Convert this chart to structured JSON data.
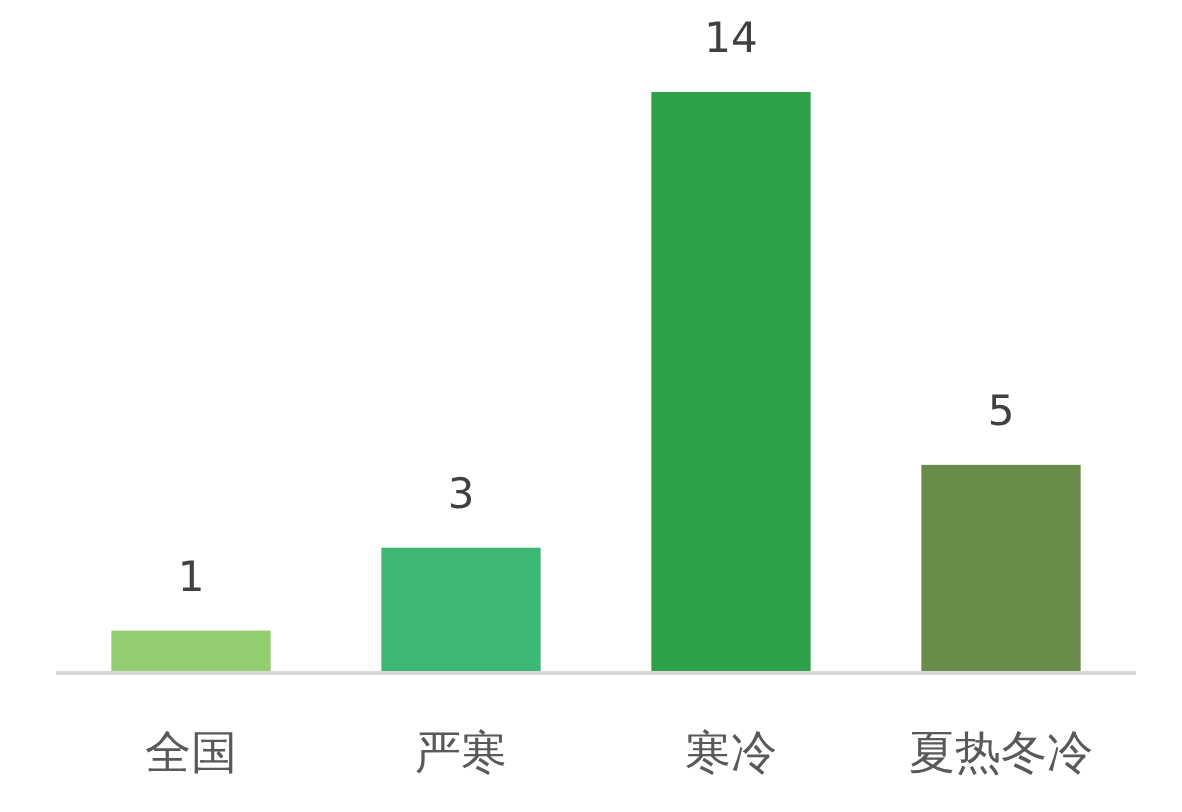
{
  "chart_data": {
    "type": "bar",
    "categories": [
      "全国",
      "严寒",
      "寒冷",
      "夏热冬冷"
    ],
    "values": [
      1,
      3,
      14,
      5
    ],
    "colors": [
      "#92cd6f",
      "#3cb774",
      "#2fa148",
      "#6a8c4b"
    ],
    "data_labels": true
  }
}
